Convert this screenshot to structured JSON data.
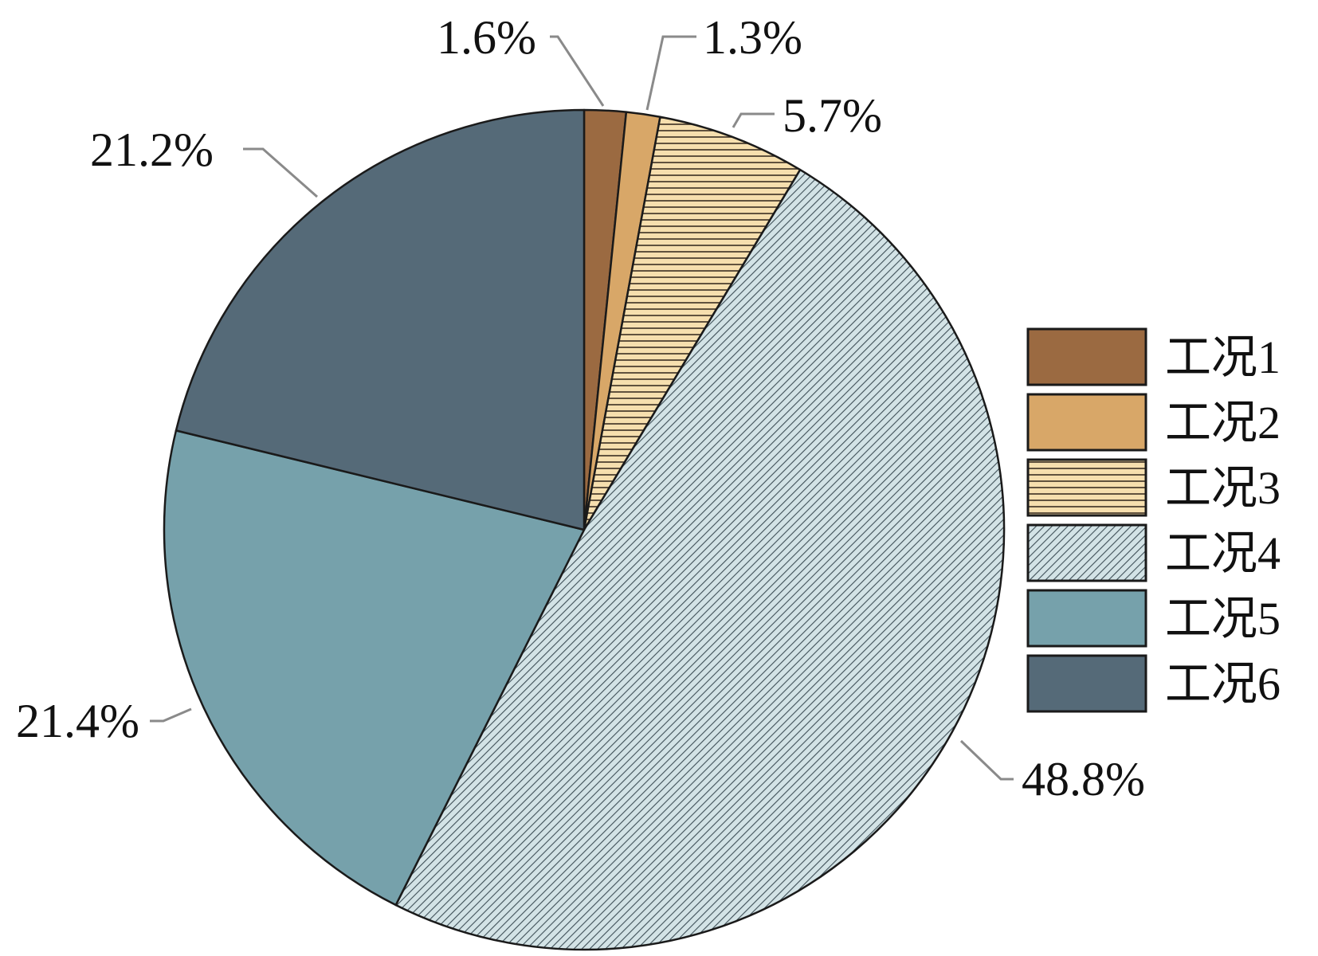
{
  "chart_data": {
    "type": "pie",
    "title": "",
    "start_direction": "12 o'clock, clockwise",
    "legend_position": "right",
    "slices": [
      {
        "label": "工况1",
        "value": 1.6,
        "value_label": "1.6%",
        "color": "#9b6a41",
        "fill_style": "solid"
      },
      {
        "label": "工况2",
        "value": 1.3,
        "value_label": "1.3%",
        "color": "#d8a768",
        "fill_style": "solid"
      },
      {
        "label": "工况3",
        "value": 5.7,
        "value_label": "5.7%",
        "color": "#f6dfae",
        "fill_style": "horizontal-lines"
      },
      {
        "label": "工况4",
        "value": 48.8,
        "value_label": "48.8%",
        "color": "#d3e3e6",
        "fill_style": "diagonal-lines"
      },
      {
        "label": "工况5",
        "value": 21.4,
        "value_label": "21.4%",
        "color": "#76a1ab",
        "fill_style": "solid"
      },
      {
        "label": "工况6",
        "value": 21.2,
        "value_label": "21.2%",
        "color": "#556a78",
        "fill_style": "solid"
      }
    ]
  }
}
